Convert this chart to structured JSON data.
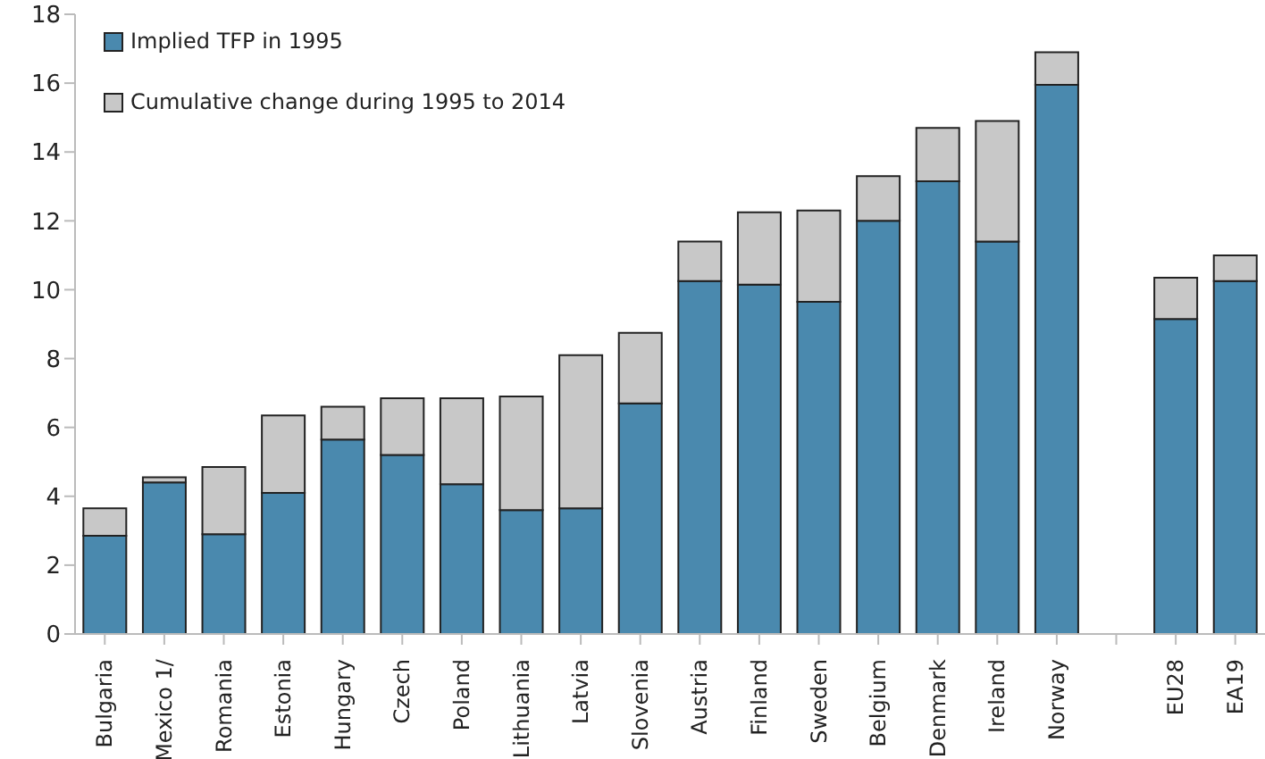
{
  "chart_data": {
    "type": "bar",
    "stacked": true,
    "categories": [
      "Bulgaria",
      "Mexico 1/",
      "Romania",
      "Estonia",
      "Hungary",
      "Czech",
      "Poland",
      "Lithuania",
      "Latvia",
      "Slovenia",
      "Austria",
      "Finland",
      "Sweden",
      "Belgium",
      "Denmark",
      "Ireland",
      "Norway",
      null,
      "EU28",
      "EA19"
    ],
    "series": [
      {
        "name": "Implied TFP in 1995",
        "color": "#4a89ae",
        "values": [
          2.85,
          4.4,
          2.9,
          4.1,
          5.65,
          5.2,
          4.35,
          3.6,
          3.65,
          6.7,
          10.25,
          10.15,
          9.65,
          12.0,
          13.15,
          11.4,
          15.95,
          null,
          9.15,
          10.25
        ]
      },
      {
        "name": "Cumulative change during 1995 to 2014",
        "color": "#c8c8c8",
        "values": [
          0.8,
          0.15,
          1.95,
          2.25,
          0.95,
          1.65,
          2.5,
          3.3,
          4.45,
          2.05,
          1.15,
          2.1,
          2.65,
          1.3,
          1.55,
          3.5,
          0.95,
          null,
          1.2,
          0.75
        ]
      }
    ],
    "ylim": [
      0,
      18
    ],
    "yticks": [
      0,
      2,
      4,
      6,
      8,
      10,
      12,
      14,
      16,
      18
    ],
    "grid": false,
    "legend": "top left"
  }
}
